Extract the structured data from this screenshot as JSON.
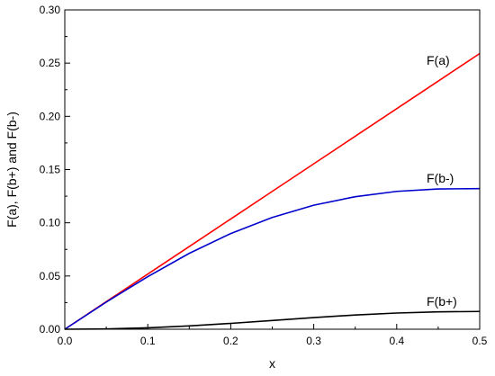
{
  "chart_data": {
    "type": "line",
    "title": "",
    "xlabel": "x",
    "ylabel": "F(a), F(b+) and F(b-)",
    "xlim": [
      0,
      0.5
    ],
    "ylim": [
      0,
      0.3
    ],
    "x_ticks": [
      "0.0",
      "0.1",
      "0.2",
      "0.3",
      "0.4",
      "0.5"
    ],
    "y_ticks": [
      "0.00",
      "0.05",
      "0.10",
      "0.15",
      "0.20",
      "0.25",
      "0.30"
    ],
    "grid": false,
    "legend": "none (series labelled inline near curve ends)",
    "series": [
      {
        "name": "F(a)",
        "color": "#ff0000",
        "x": [
          0,
          0.05,
          0.1,
          0.15,
          0.2,
          0.25,
          0.3,
          0.35,
          0.4,
          0.45,
          0.5
        ],
        "y": [
          0,
          0.0259,
          0.0518,
          0.0777,
          0.1036,
          0.1295,
          0.1554,
          0.1813,
          0.2072,
          0.2331,
          0.259
        ]
      },
      {
        "name": "F(b-)",
        "color": "#0000cc",
        "x": [
          0,
          0.05,
          0.1,
          0.15,
          0.2,
          0.25,
          0.3,
          0.35,
          0.4,
          0.45,
          0.5
        ],
        "y": [
          0,
          0.0255,
          0.0494,
          0.0713,
          0.0899,
          0.105,
          0.1165,
          0.1245,
          0.1295,
          0.1318,
          0.1321
        ]
      },
      {
        "name": "F(b+)",
        "color": "#000000",
        "x": [
          0,
          0.05,
          0.1,
          0.15,
          0.2,
          0.25,
          0.3,
          0.35,
          0.4,
          0.45,
          0.5
        ],
        "y": [
          0,
          0.0003,
          0.0013,
          0.0031,
          0.0055,
          0.0082,
          0.0109,
          0.0134,
          0.0152,
          0.0163,
          0.0167
        ]
      }
    ]
  }
}
